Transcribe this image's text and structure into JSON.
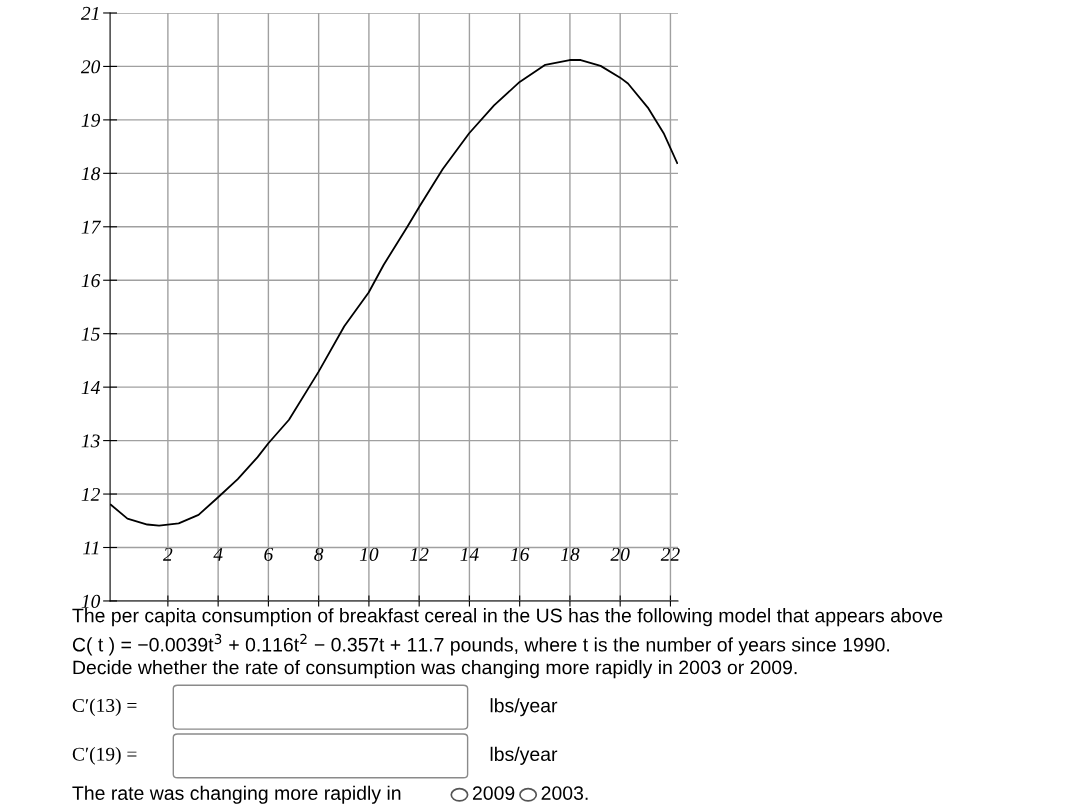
{
  "chart_data": {
    "type": "line",
    "x": [
      -0.27,
      0.39,
      1.18,
      1.65,
      2.43,
      3.22,
      4.0,
      4.78,
      5.57,
      6.0,
      6.82,
      8.0,
      9.02,
      9.99,
      10.59,
      11.53,
      12.0,
      12.94,
      13.99,
      14.98,
      16.0,
      17.02,
      17.99,
      18.43,
      19.22,
      20.0,
      20.31,
      21.1,
      21.73,
      22.27
    ],
    "series": [
      {
        "color": "#000000",
        "values": [
          11.8,
          11.54,
          11.43,
          11.41,
          11.45,
          11.61,
          11.94,
          12.28,
          12.69,
          12.95,
          13.39,
          14.29,
          15.14,
          15.77,
          16.29,
          17.0,
          17.37,
          18.08,
          18.75,
          19.27,
          19.71,
          20.03,
          20.12,
          20.12,
          20.01,
          19.79,
          19.68,
          19.23,
          18.75,
          18.19
        ]
      }
    ],
    "xlim": [
      -0.3,
      22.3
    ],
    "ylim": [
      10,
      21
    ],
    "xticks": [
      2,
      4,
      6,
      8,
      10,
      12,
      14,
      16,
      18,
      20,
      22
    ],
    "yticks": [
      10,
      11,
      12,
      13,
      14,
      15,
      16,
      17,
      18,
      19,
      20,
      21
    ],
    "grid": true,
    "marker": "none",
    "line_style": "solid",
    "annotations": [
      "The per capita consumption of breakfast cereal in the US has the following model that appears above",
      "C( t ) = −0.0039t$^{3}$ + 0.116t$^{2}$ − 0.357t + 11.7 pounds, where t is the number of years since 1990.",
      "Decide whether the rate of consumption was changing more rapidly in 2003 or 2009.",
      "C′(13) =",
      "lbs/year",
      "C′(19) =",
      "lbs/year",
      "The rate was changing more rapidly in",
      "2009",
      "2003."
    ]
  }
}
